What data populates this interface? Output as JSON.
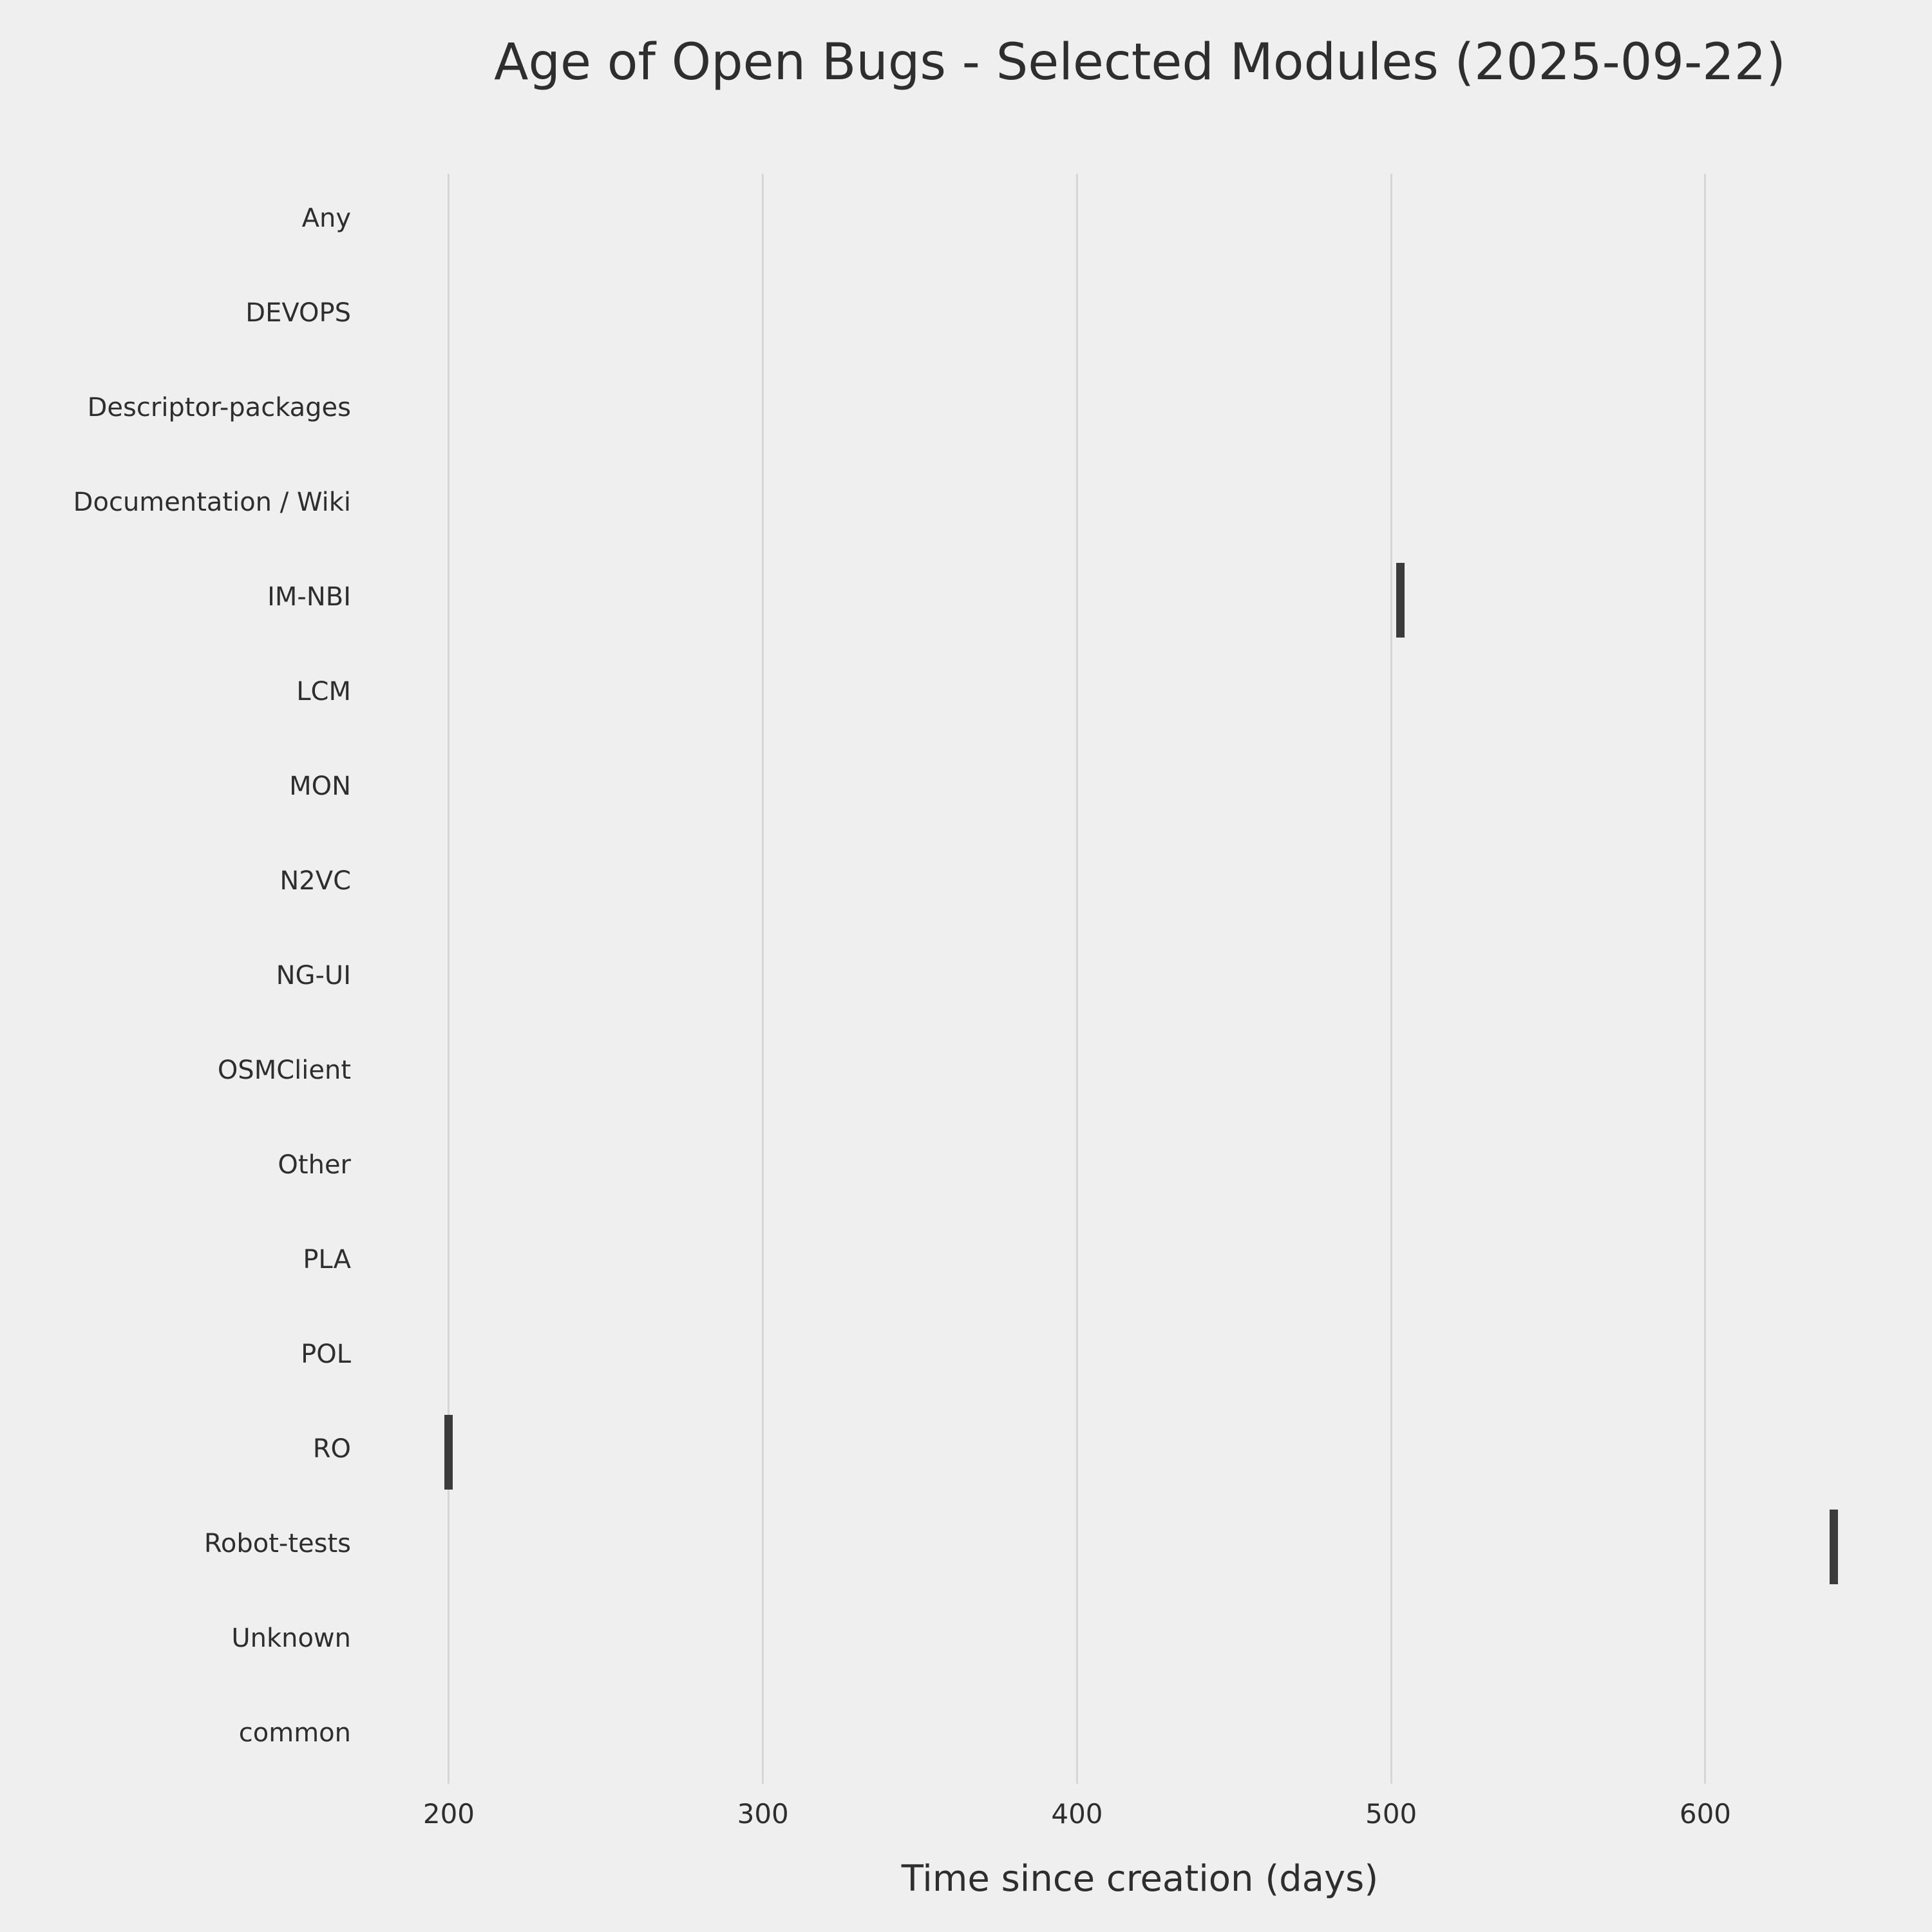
{
  "chart_data": {
    "type": "boxplot",
    "title": "Age of Open Bugs - Selected Modules (2025-09-22)",
    "xlabel": "Time since creation (days)",
    "ylabel": "",
    "orientation": "horizontal",
    "grid": true,
    "legend": null,
    "xlim": [
      175,
      665
    ],
    "xticks": [
      200,
      300,
      400,
      500,
      600
    ],
    "note": "Each dark tick is a collapsed boxplot (single open bug age in days); modules with null have no visible marks",
    "categories": [
      {
        "label": "Any",
        "value": null
      },
      {
        "label": "DEVOPS",
        "value": null
      },
      {
        "label": "Descriptor-packages",
        "value": null
      },
      {
        "label": "Documentation / Wiki",
        "value": null
      },
      {
        "label": "IM-NBI",
        "value": 503
      },
      {
        "label": "LCM",
        "value": null
      },
      {
        "label": "MON",
        "value": null
      },
      {
        "label": "N2VC",
        "value": null
      },
      {
        "label": "NG-UI",
        "value": null
      },
      {
        "label": "OSMClient",
        "value": null
      },
      {
        "label": "Other",
        "value": null
      },
      {
        "label": "PLA",
        "value": null
      },
      {
        "label": "POL",
        "value": null
      },
      {
        "label": "RO",
        "value": 200
      },
      {
        "label": "Robot-tests",
        "value": 641
      },
      {
        "label": "Unknown",
        "value": null
      },
      {
        "label": "common",
        "value": null
      }
    ],
    "colors": {
      "background": "#efefef",
      "grid": "#d6d6d6",
      "mark": "#3b3b3b",
      "text": "#2e2e2e"
    }
  }
}
